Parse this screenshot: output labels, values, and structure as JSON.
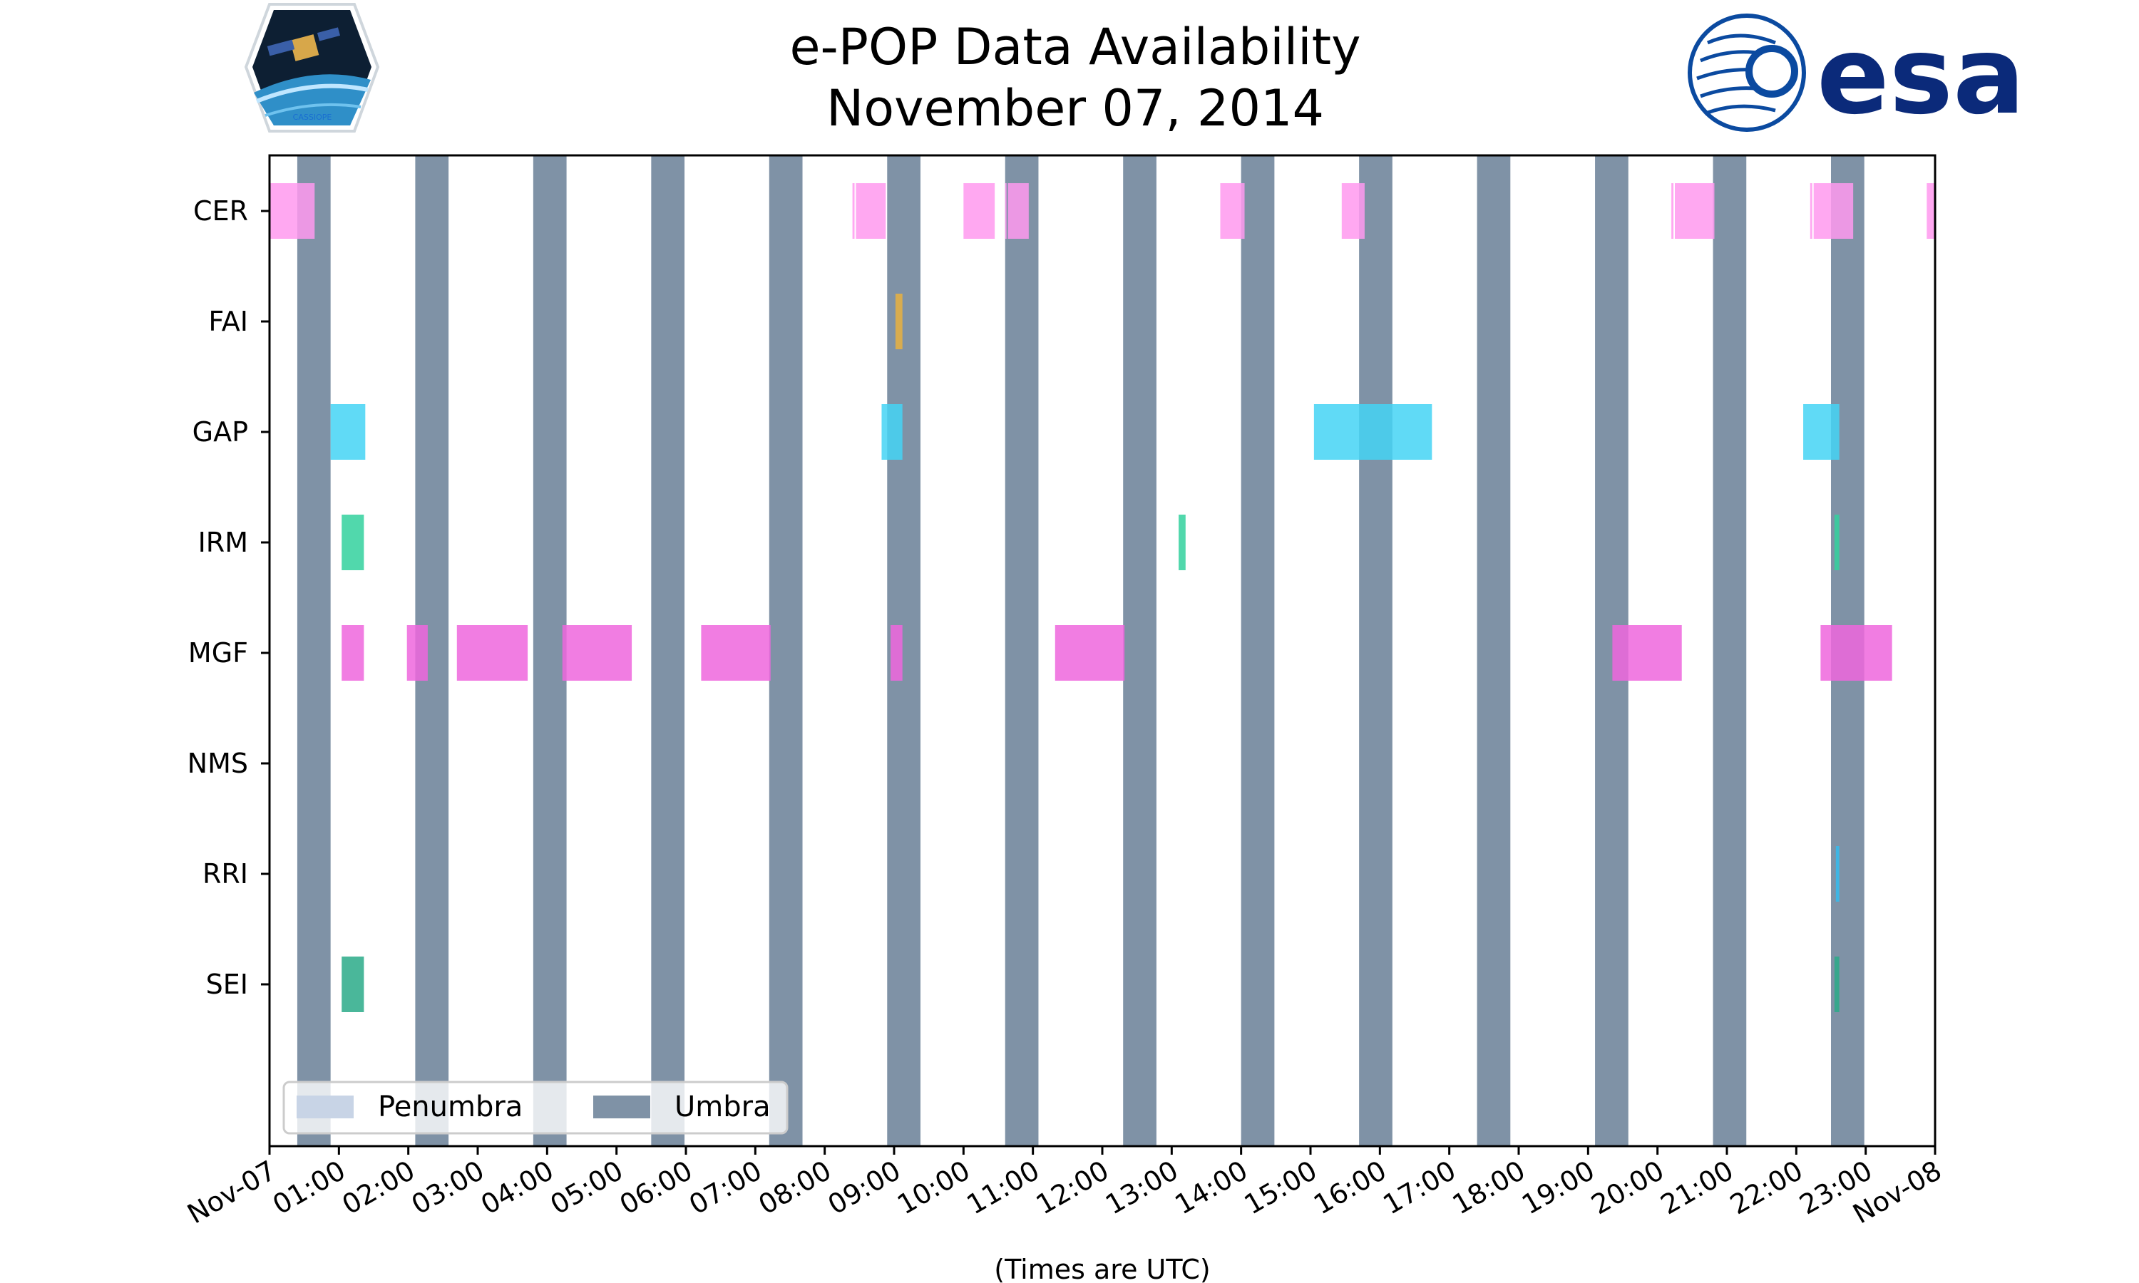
{
  "chart_data": {
    "type": "timeline",
    "title": "e-POP Data Availability",
    "subtitle": "November 07, 2014",
    "xlabel": "(Times are UTC)",
    "xlim": [
      0,
      24
    ],
    "x_tick_labels": [
      "Nov-07",
      "01:00",
      "02:00",
      "03:00",
      "04:00",
      "05:00",
      "06:00",
      "07:00",
      "08:00",
      "09:00",
      "10:00",
      "11:00",
      "12:00",
      "13:00",
      "14:00",
      "15:00",
      "16:00",
      "17:00",
      "18:00",
      "19:00",
      "20:00",
      "21:00",
      "22:00",
      "23:00",
      "Nov-08"
    ],
    "instruments": [
      "CER",
      "FAI",
      "GAP",
      "IRM",
      "MGF",
      "NMS",
      "RRI",
      "SEI"
    ],
    "umbra": [
      [
        0.4,
        0.88
      ],
      [
        2.1,
        2.58
      ],
      [
        3.8,
        4.28
      ],
      [
        5.5,
        5.98
      ],
      [
        7.2,
        7.68
      ],
      [
        8.9,
        9.38
      ],
      [
        10.6,
        11.08
      ],
      [
        12.3,
        12.78
      ],
      [
        14.0,
        14.48
      ],
      [
        15.7,
        16.18
      ],
      [
        17.4,
        17.88
      ],
      [
        19.1,
        19.58
      ],
      [
        20.8,
        21.28
      ],
      [
        22.5,
        22.98
      ]
    ],
    "series": [
      {
        "name": "CER",
        "color": "#ff99ee",
        "segments": [
          [
            0.0,
            0.65
          ],
          [
            8.4,
            8.43
          ],
          [
            8.45,
            8.88
          ],
          [
            10.0,
            10.45
          ],
          [
            10.6,
            10.62
          ],
          [
            10.64,
            10.94
          ],
          [
            13.7,
            14.05
          ],
          [
            15.45,
            15.78
          ],
          [
            20.2,
            20.23
          ],
          [
            20.25,
            20.82
          ],
          [
            22.2,
            22.23
          ],
          [
            22.25,
            22.82
          ],
          [
            23.88,
            24.0
          ]
        ]
      },
      {
        "name": "FAI",
        "color": "#e8b040",
        "segments": [
          [
            9.02,
            9.12
          ]
        ]
      },
      {
        "name": "GAP",
        "color": "#44d4f5",
        "segments": [
          [
            0.88,
            1.38
          ],
          [
            8.82,
            9.12
          ],
          [
            15.05,
            16.75
          ],
          [
            22.1,
            22.62
          ]
        ]
      },
      {
        "name": "IRM",
        "color": "#33d19e",
        "segments": [
          [
            1.04,
            1.36
          ],
          [
            13.1,
            13.2
          ],
          [
            22.55,
            22.62
          ]
        ]
      },
      {
        "name": "MGF",
        "color": "#ee66dd",
        "segments": [
          [
            1.04,
            1.36
          ],
          [
            1.98,
            2.28
          ],
          [
            2.7,
            3.72
          ],
          [
            4.22,
            5.22
          ],
          [
            6.22,
            7.22
          ],
          [
            8.95,
            9.12
          ],
          [
            11.32,
            12.32
          ],
          [
            19.35,
            20.35
          ],
          [
            22.35,
            23.38
          ]
        ]
      },
      {
        "name": "NMS",
        "color": "#888888",
        "segments": []
      },
      {
        "name": "RRI",
        "color": "#33bbee",
        "segments": [
          [
            22.57,
            22.62
          ]
        ]
      },
      {
        "name": "SEI",
        "color": "#2aaa88",
        "segments": [
          [
            1.04,
            1.36
          ],
          [
            22.55,
            22.62
          ]
        ]
      }
    ],
    "legend": {
      "position": "lower-left",
      "entries": [
        {
          "label": "Penumbra",
          "color": "#c8d4e6"
        },
        {
          "label": "Umbra",
          "color": "#7f92a6"
        }
      ]
    },
    "umbra_color": "#7f92a6"
  },
  "logos": {
    "left_caption": "CASSIOPE",
    "right_text": "esa"
  }
}
